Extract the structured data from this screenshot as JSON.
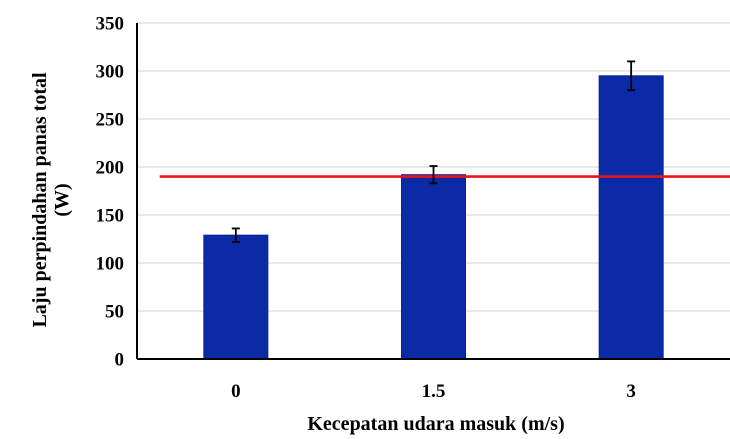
{
  "chart_data": {
    "type": "bar",
    "title": "",
    "xlabel": "Kecepatan udara masuk (m/s)",
    "ylabel_lines": [
      "Laju perpindahan panas total",
      "(W)"
    ],
    "categories": [
      "0",
      "1.5",
      "3"
    ],
    "values": [
      129,
      192,
      295
    ],
    "error": [
      7,
      9,
      15
    ],
    "reference_line": 190,
    "ylim": [
      0,
      350
    ],
    "yticks": [
      "0",
      "50",
      "100",
      "150",
      "200",
      "250",
      "300",
      "350"
    ],
    "grid": true,
    "legend": "none",
    "colors": {
      "bar": "#0a2aa6",
      "bar_edge": "#0a2391",
      "reference_line": "#e8141e",
      "grid": "#d9d9d9",
      "axis": "#000000",
      "error_bar": "#000000"
    }
  }
}
